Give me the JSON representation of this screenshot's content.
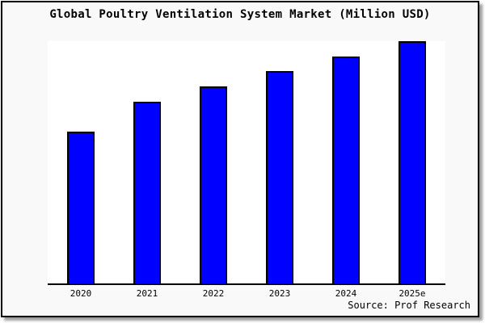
{
  "chart_data": {
    "type": "bar",
    "title": "Global Poultry Ventilation System Market (Million USD)",
    "categories": [
      "2020",
      "2021",
      "2022",
      "2023",
      "2024",
      "2025e"
    ],
    "values": [
      188,
      225,
      244,
      263,
      281,
      300
    ],
    "xlabel": "",
    "ylabel": "",
    "ylim": [
      0,
      300
    ],
    "gridlines": false,
    "legend": "none",
    "y_axis_visible": false,
    "x_axis_visible": true
  },
  "source": {
    "label": "Source: Prof Research"
  },
  "colors": {
    "page_bg": "#ffffff",
    "panel_bg": "#f9f9f9",
    "panel_border": "#000000",
    "plot_bg": "#ffffff",
    "axis": "#000000",
    "bar_fill": "#0000ff",
    "bar_border": "#000000",
    "shadow": "#9e9e9e"
  }
}
